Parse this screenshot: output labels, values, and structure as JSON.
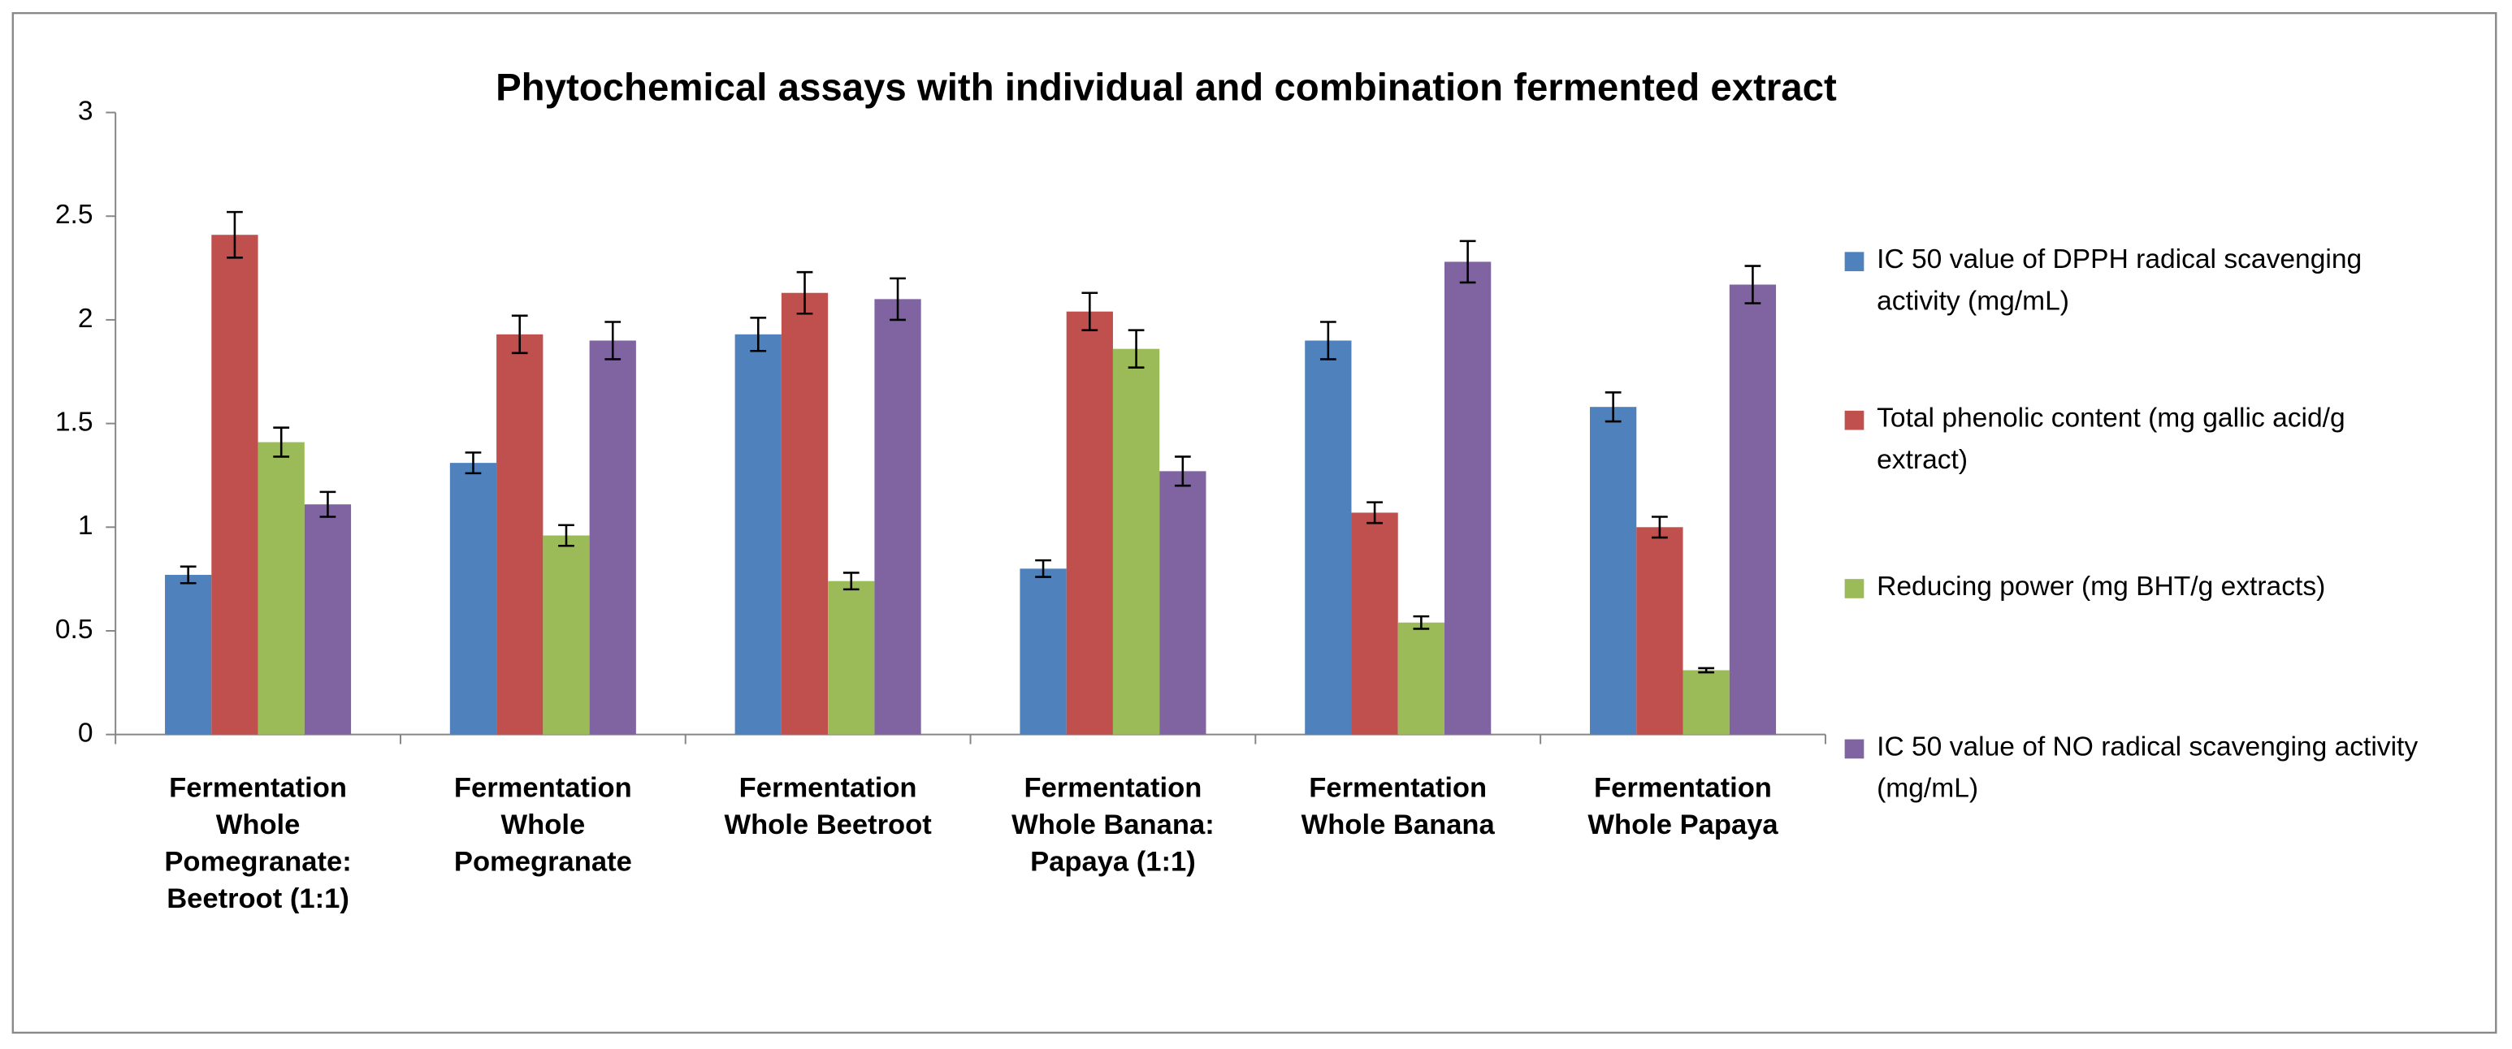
{
  "chart_data": {
    "type": "bar",
    "title": "Phytochemical assays with individual and combination fermented extract",
    "categories": [
      "Fermentation Whole Pomegranate: Beetroot (1:1)",
      "Fermentation Whole Pomegranate",
      "Fermentation Whole Beetroot",
      "Fermentation Whole Banana: Papaya (1:1)",
      "Fermentation Whole Banana",
      "Fermentation Whole Papaya"
    ],
    "series": [
      {
        "name": "IC 50  value of DPPH radical scavenging activity (mg/mL)",
        "color": "#4f81bd",
        "values": [
          0.77,
          1.31,
          1.93,
          0.8,
          1.9,
          1.58
        ],
        "errors": [
          0.04,
          0.05,
          0.08,
          0.04,
          0.09,
          0.07
        ]
      },
      {
        "name": "Total phenolic content  (mg gallic acid/g extract)",
        "color": "#c0504d",
        "values": [
          2.41,
          1.93,
          2.13,
          2.04,
          1.07,
          1.0
        ],
        "errors": [
          0.11,
          0.09,
          0.1,
          0.09,
          0.05,
          0.05
        ]
      },
      {
        "name": "Reducing power (mg BHT/g extracts)",
        "color": "#9bbb59",
        "values": [
          1.41,
          0.96,
          0.74,
          1.86,
          0.54,
          0.31
        ],
        "errors": [
          0.07,
          0.05,
          0.04,
          0.09,
          0.03,
          0.01
        ]
      },
      {
        "name": "IC 50  value of NO radical scavenging activity  (mg/mL)",
        "color": "#8064a2",
        "values": [
          1.11,
          1.9,
          2.1,
          1.27,
          2.28,
          2.17
        ],
        "errors": [
          0.06,
          0.09,
          0.1,
          0.07,
          0.1,
          0.09
        ]
      }
    ],
    "ylim": [
      0,
      3
    ],
    "yticks": [
      0,
      0.5,
      1,
      1.5,
      2,
      2.5,
      3
    ],
    "grid": false,
    "legend": "right"
  }
}
